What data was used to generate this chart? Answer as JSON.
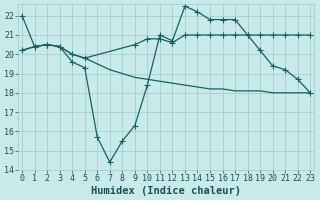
{
  "xlabel": "Humidex (Indice chaleur)",
  "background_color": "#c8eaea",
  "grid_color": "#a0c8c8",
  "line_color": "#1a6060",
  "xlim": [
    -0.3,
    23.3
  ],
  "ylim": [
    14,
    22.6
  ],
  "yticks": [
    14,
    15,
    16,
    17,
    18,
    19,
    20,
    21,
    22
  ],
  "xticks": [
    0,
    1,
    2,
    3,
    4,
    5,
    6,
    7,
    8,
    9,
    10,
    11,
    12,
    13,
    14,
    15,
    16,
    17,
    18,
    19,
    20,
    21,
    22,
    23
  ],
  "line1_x": [
    0,
    1,
    2,
    3,
    4,
    5,
    6,
    7,
    8,
    9,
    10,
    11,
    12,
    13,
    14,
    15,
    16,
    17,
    18,
    19,
    20,
    21,
    22,
    23
  ],
  "line1_y": [
    22.0,
    20.4,
    20.5,
    20.4,
    19.6,
    19.3,
    15.7,
    14.4,
    15.5,
    16.3,
    18.4,
    21.0,
    20.7,
    22.5,
    22.2,
    21.8,
    21.8,
    21.8,
    21.0,
    20.2,
    19.4,
    19.2,
    18.7,
    18.0
  ],
  "line2_x": [
    0,
    1,
    2,
    3,
    4,
    5,
    9,
    10,
    11,
    12,
    13,
    14,
    15,
    16,
    17,
    18,
    19,
    20,
    21,
    22,
    23
  ],
  "line2_y": [
    20.2,
    20.4,
    20.5,
    20.4,
    20.0,
    19.8,
    20.5,
    20.8,
    20.8,
    20.6,
    21.0,
    21.0,
    21.0,
    21.0,
    21.0,
    21.0,
    21.0,
    21.0,
    21.0,
    21.0,
    21.0
  ],
  "line3_x": [
    0,
    1,
    2,
    3,
    4,
    5,
    6,
    7,
    8,
    9,
    10,
    11,
    12,
    13,
    14,
    15,
    16,
    17,
    18,
    19,
    20,
    21,
    22,
    23
  ],
  "line3_y": [
    20.2,
    20.4,
    20.5,
    20.4,
    20.0,
    19.8,
    19.5,
    19.2,
    19.0,
    18.8,
    18.7,
    18.6,
    18.5,
    18.4,
    18.3,
    18.2,
    18.2,
    18.1,
    18.1,
    18.1,
    18.0,
    18.0,
    18.0,
    18.0
  ],
  "font_color": "#1a5050",
  "tick_fontsize": 6.0,
  "label_fontsize": 7.5,
  "marker_size": 2.5
}
